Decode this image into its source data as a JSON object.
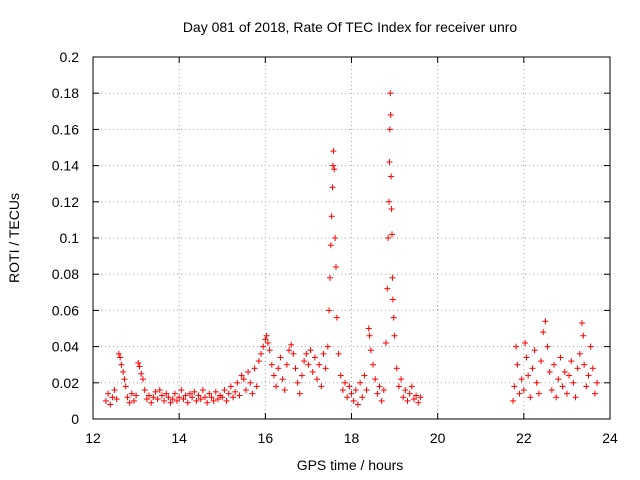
{
  "chart_data": {
    "type": "scatter",
    "title": "Day 081 of 2018, Rate Of TEC Index for receiver unro",
    "xlabel": "GPS time / hours",
    "ylabel": "ROTI / TECUs",
    "xlim": [
      12,
      24
    ],
    "ylim": [
      0,
      0.2
    ],
    "xticks": [
      12,
      14,
      16,
      18,
      20,
      22,
      24
    ],
    "xtick_labels": [
      "12",
      "14",
      "16",
      "18",
      "20",
      "22",
      "24"
    ],
    "yticks": [
      0,
      0.02,
      0.04,
      0.06,
      0.08,
      0.1,
      0.12,
      0.14,
      0.16,
      0.18,
      0.2
    ],
    "ytick_labels": [
      "0",
      "0.02",
      "0.04",
      "0.06",
      "0.08",
      "0.1",
      "0.12",
      "0.14",
      "0.16",
      "0.18",
      "0.2"
    ],
    "grid": true,
    "marker": "+",
    "color": "#ff0000",
    "series": [
      {
        "name": "ROTI",
        "points": [
          [
            12.3,
            0.01
          ],
          [
            12.35,
            0.014
          ],
          [
            12.4,
            0.008
          ],
          [
            12.45,
            0.012
          ],
          [
            12.5,
            0.016
          ],
          [
            12.55,
            0.011
          ],
          [
            12.6,
            0.036
          ],
          [
            12.63,
            0.034
          ],
          [
            12.66,
            0.03
          ],
          [
            12.7,
            0.026
          ],
          [
            12.73,
            0.022
          ],
          [
            12.76,
            0.018
          ],
          [
            12.8,
            0.012
          ],
          [
            12.85,
            0.009
          ],
          [
            12.9,
            0.014
          ],
          [
            12.95,
            0.01
          ],
          [
            13.0,
            0.013
          ],
          [
            13.05,
            0.031
          ],
          [
            13.08,
            0.029
          ],
          [
            13.12,
            0.025
          ],
          [
            13.16,
            0.022
          ],
          [
            13.2,
            0.016
          ],
          [
            13.25,
            0.011
          ],
          [
            13.3,
            0.013
          ],
          [
            13.35,
            0.009
          ],
          [
            13.4,
            0.012
          ],
          [
            13.45,
            0.015
          ],
          [
            13.5,
            0.011
          ],
          [
            13.55,
            0.016
          ],
          [
            13.6,
            0.013
          ],
          [
            13.65,
            0.01
          ],
          [
            13.7,
            0.014
          ],
          [
            13.75,
            0.012
          ],
          [
            13.8,
            0.009
          ],
          [
            13.85,
            0.011
          ],
          [
            13.9,
            0.014
          ],
          [
            13.95,
            0.01
          ],
          [
            14.0,
            0.012
          ],
          [
            14.05,
            0.016
          ],
          [
            14.1,
            0.011
          ],
          [
            14.15,
            0.013
          ],
          [
            14.2,
            0.009
          ],
          [
            14.25,
            0.014
          ],
          [
            14.3,
            0.012
          ],
          [
            14.35,
            0.015
          ],
          [
            14.4,
            0.01
          ],
          [
            14.45,
            0.013
          ],
          [
            14.5,
            0.011
          ],
          [
            14.55,
            0.016
          ],
          [
            14.6,
            0.012
          ],
          [
            14.65,
            0.009
          ],
          [
            14.7,
            0.014
          ],
          [
            14.75,
            0.012
          ],
          [
            14.8,
            0.01
          ],
          [
            14.85,
            0.015
          ],
          [
            14.9,
            0.011
          ],
          [
            14.95,
            0.013
          ],
          [
            15.0,
            0.012
          ],
          [
            15.05,
            0.016
          ],
          [
            15.1,
            0.01
          ],
          [
            15.15,
            0.014
          ],
          [
            15.2,
            0.018
          ],
          [
            15.25,
            0.012
          ],
          [
            15.3,
            0.015
          ],
          [
            15.35,
            0.02
          ],
          [
            15.4,
            0.013
          ],
          [
            15.45,
            0.024
          ],
          [
            15.5,
            0.022
          ],
          [
            15.55,
            0.016
          ],
          [
            15.6,
            0.026
          ],
          [
            15.65,
            0.02
          ],
          [
            15.7,
            0.014
          ],
          [
            15.75,
            0.028
          ],
          [
            15.8,
            0.018
          ],
          [
            15.85,
            0.032
          ],
          [
            15.9,
            0.036
          ],
          [
            15.95,
            0.04
          ],
          [
            16.0,
            0.044
          ],
          [
            16.03,
            0.046
          ],
          [
            16.06,
            0.042
          ],
          [
            16.1,
            0.038
          ],
          [
            16.15,
            0.03
          ],
          [
            16.2,
            0.024
          ],
          [
            16.25,
            0.018
          ],
          [
            16.3,
            0.028
          ],
          [
            16.35,
            0.034
          ],
          [
            16.4,
            0.022
          ],
          [
            16.45,
            0.016
          ],
          [
            16.5,
            0.03
          ],
          [
            16.55,
            0.038
          ],
          [
            16.6,
            0.041
          ],
          [
            16.65,
            0.036
          ],
          [
            16.7,
            0.028
          ],
          [
            16.75,
            0.02
          ],
          [
            16.8,
            0.014
          ],
          [
            16.85,
            0.024
          ],
          [
            16.9,
            0.032
          ],
          [
            16.95,
            0.036
          ],
          [
            17.0,
            0.03
          ],
          [
            17.05,
            0.038
          ],
          [
            17.1,
            0.026
          ],
          [
            17.15,
            0.034
          ],
          [
            17.2,
            0.022
          ],
          [
            17.25,
            0.03
          ],
          [
            17.3,
            0.018
          ],
          [
            17.35,
            0.036
          ],
          [
            17.4,
            0.028
          ],
          [
            17.45,
            0.04
          ],
          [
            17.48,
            0.06
          ],
          [
            17.5,
            0.078
          ],
          [
            17.52,
            0.096
          ],
          [
            17.54,
            0.112
          ],
          [
            17.56,
            0.128
          ],
          [
            17.57,
            0.14
          ],
          [
            17.58,
            0.148
          ],
          [
            17.6,
            0.138
          ],
          [
            17.62,
            0.1
          ],
          [
            17.64,
            0.084
          ],
          [
            17.66,
            0.056
          ],
          [
            17.7,
            0.036
          ],
          [
            17.75,
            0.024
          ],
          [
            17.8,
            0.016
          ],
          [
            17.85,
            0.02
          ],
          [
            17.9,
            0.012
          ],
          [
            17.95,
            0.018
          ],
          [
            18.0,
            0.014
          ],
          [
            18.05,
            0.01
          ],
          [
            18.1,
            0.016
          ],
          [
            18.15,
            0.008
          ],
          [
            18.2,
            0.02
          ],
          [
            18.25,
            0.012
          ],
          [
            18.3,
            0.024
          ],
          [
            18.35,
            0.016
          ],
          [
            18.4,
            0.05
          ],
          [
            18.42,
            0.046
          ],
          [
            18.45,
            0.038
          ],
          [
            18.5,
            0.03
          ],
          [
            18.55,
            0.022
          ],
          [
            18.6,
            0.014
          ],
          [
            18.65,
            0.018
          ],
          [
            18.7,
            0.01
          ],
          [
            18.75,
            0.016
          ],
          [
            18.8,
            0.042
          ],
          [
            18.83,
            0.072
          ],
          [
            18.85,
            0.1
          ],
          [
            18.87,
            0.12
          ],
          [
            18.88,
            0.142
          ],
          [
            18.89,
            0.16
          ],
          [
            18.9,
            0.18
          ],
          [
            18.91,
            0.168
          ],
          [
            18.92,
            0.134
          ],
          [
            18.93,
            0.116
          ],
          [
            18.94,
            0.102
          ],
          [
            18.95,
            0.078
          ],
          [
            18.96,
            0.066
          ],
          [
            18.98,
            0.056
          ],
          [
            19.0,
            0.046
          ],
          [
            19.05,
            0.028
          ],
          [
            19.1,
            0.018
          ],
          [
            19.15,
            0.022
          ],
          [
            19.2,
            0.012
          ],
          [
            19.25,
            0.016
          ],
          [
            19.3,
            0.01
          ],
          [
            19.35,
            0.014
          ],
          [
            19.4,
            0.018
          ],
          [
            19.45,
            0.011
          ],
          [
            19.5,
            0.013
          ],
          [
            19.55,
            0.009
          ],
          [
            19.6,
            0.012
          ],
          [
            21.75,
            0.01
          ],
          [
            21.78,
            0.018
          ],
          [
            21.82,
            0.04
          ],
          [
            21.85,
            0.03
          ],
          [
            21.9,
            0.014
          ],
          [
            21.95,
            0.022
          ],
          [
            22.0,
            0.016
          ],
          [
            22.03,
            0.042
          ],
          [
            22.06,
            0.034
          ],
          [
            22.1,
            0.024
          ],
          [
            22.15,
            0.012
          ],
          [
            22.2,
            0.028
          ],
          [
            22.25,
            0.038
          ],
          [
            22.3,
            0.02
          ],
          [
            22.35,
            0.014
          ],
          [
            22.4,
            0.032
          ],
          [
            22.45,
            0.048
          ],
          [
            22.5,
            0.054
          ],
          [
            22.55,
            0.04
          ],
          [
            22.6,
            0.026
          ],
          [
            22.65,
            0.016
          ],
          [
            22.7,
            0.03
          ],
          [
            22.75,
            0.012
          ],
          [
            22.8,
            0.022
          ],
          [
            22.85,
            0.034
          ],
          [
            22.9,
            0.018
          ],
          [
            22.95,
            0.026
          ],
          [
            23.0,
            0.014
          ],
          [
            23.05,
            0.024
          ],
          [
            23.1,
            0.032
          ],
          [
            23.15,
            0.02
          ],
          [
            23.2,
            0.012
          ],
          [
            23.25,
            0.028
          ],
          [
            23.3,
            0.036
          ],
          [
            23.35,
            0.053
          ],
          [
            23.38,
            0.046
          ],
          [
            23.4,
            0.03
          ],
          [
            23.45,
            0.018
          ],
          [
            23.5,
            0.024
          ],
          [
            23.55,
            0.04
          ],
          [
            23.6,
            0.028
          ],
          [
            23.65,
            0.014
          ],
          [
            23.7,
            0.02
          ]
        ]
      }
    ]
  }
}
